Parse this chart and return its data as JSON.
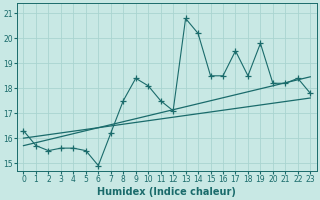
{
  "xlabel": "Humidex (Indice chaleur)",
  "bg_color": "#c8e8e4",
  "grid_color": "#aad4d0",
  "line_color": "#1a6b6b",
  "x_data": [
    0,
    1,
    2,
    3,
    4,
    5,
    6,
    7,
    8,
    9,
    10,
    11,
    12,
    13,
    14,
    15,
    16,
    17,
    18,
    19,
    20,
    21,
    22,
    23
  ],
  "y_main": [
    16.3,
    15.7,
    15.5,
    15.6,
    15.6,
    15.5,
    14.9,
    16.2,
    17.5,
    18.4,
    18.1,
    17.5,
    17.1,
    20.8,
    20.2,
    18.5,
    18.5,
    19.5,
    18.5,
    19.8,
    18.2,
    18.2,
    18.4,
    17.8
  ],
  "y_upper": [
    16.0,
    16.07,
    16.14,
    16.21,
    16.28,
    16.35,
    16.42,
    16.49,
    16.56,
    16.63,
    16.7,
    16.77,
    16.84,
    16.91,
    16.98,
    17.05,
    17.12,
    17.19,
    17.26,
    17.33,
    17.4,
    17.47,
    17.54,
    17.61
  ],
  "y_lower": [
    15.7,
    15.82,
    15.94,
    16.06,
    16.18,
    16.3,
    16.42,
    16.54,
    16.66,
    16.78,
    16.9,
    17.02,
    17.14,
    17.26,
    17.38,
    17.5,
    17.62,
    17.74,
    17.86,
    17.98,
    18.1,
    18.22,
    18.34,
    18.46
  ],
  "ylim": [
    14.7,
    21.4
  ],
  "xlim": [
    -0.5,
    23.5
  ],
  "yticks": [
    15,
    16,
    17,
    18,
    19,
    20,
    21
  ],
  "xticks": [
    0,
    1,
    2,
    3,
    4,
    5,
    6,
    7,
    8,
    9,
    10,
    11,
    12,
    13,
    14,
    15,
    16,
    17,
    18,
    19,
    20,
    21,
    22,
    23
  ],
  "tick_fontsize": 5.5,
  "label_fontsize": 7
}
